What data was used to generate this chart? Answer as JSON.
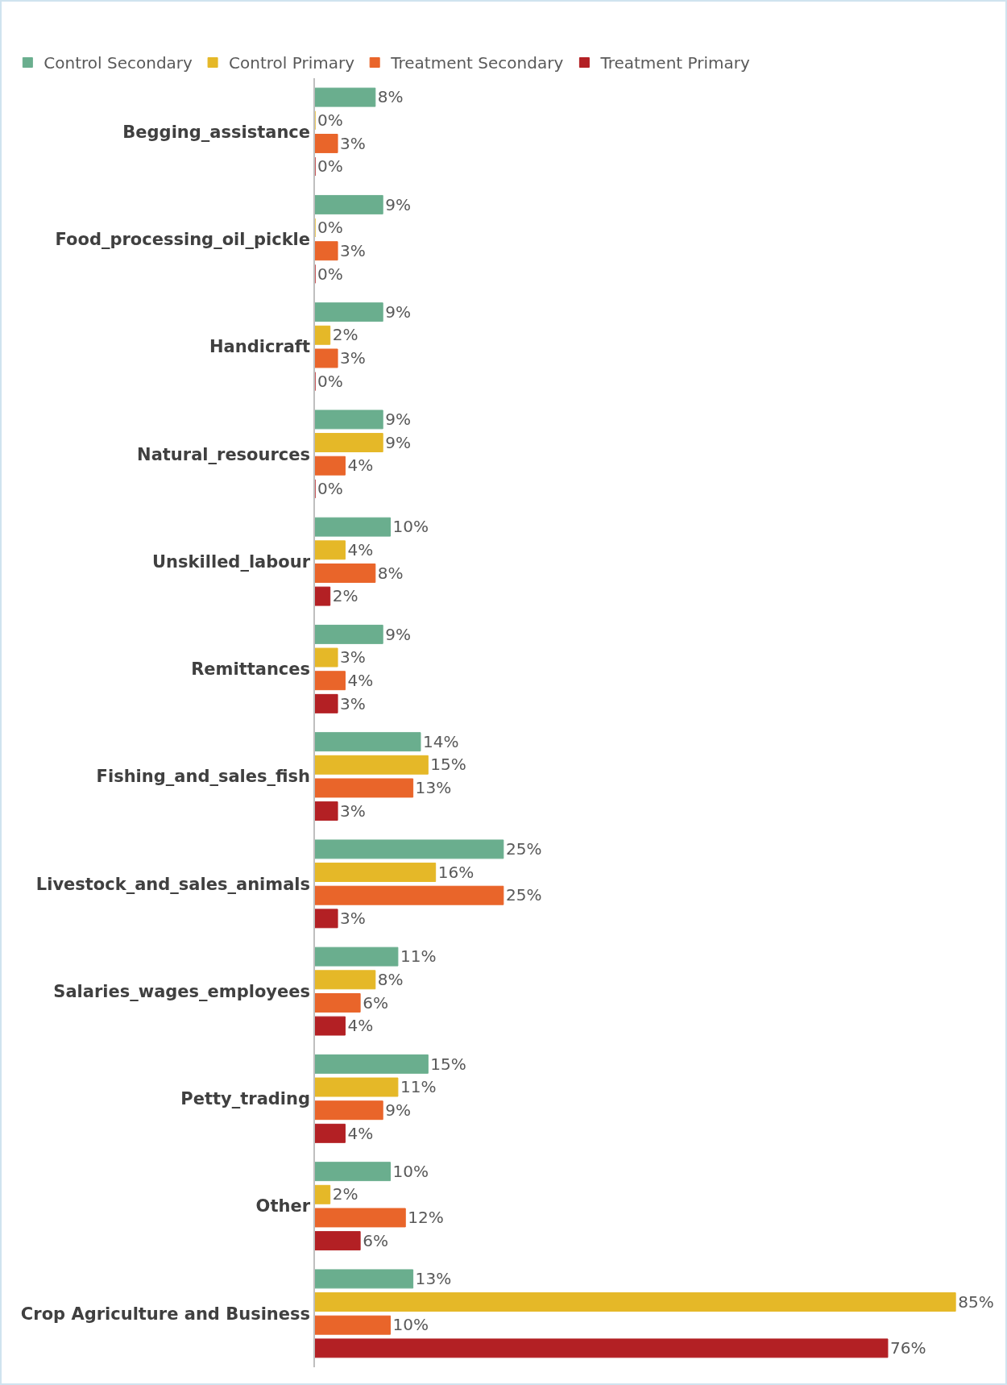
{
  "chart_data": {
    "type": "bar",
    "orientation": "horizontal",
    "legend": "top",
    "tick_labels": "y",
    "categories": [
      "Begging_assistance",
      "Food_processing_oil_pickle",
      "Handicraft",
      "Natural_resources",
      "Unskilled_labour",
      "Remittances",
      "Fishing_and_sales_fish",
      "Livestock_and_sales_animals",
      "Salaries_wages_employees",
      "Petty_trading",
      "Other",
      "Crop Agriculture and Business"
    ],
    "series": [
      {
        "name": "Control Secondary",
        "color": "#6aae8e",
        "values": [
          8,
          9,
          9,
          9,
          10,
          9,
          14,
          25,
          11,
          15,
          10,
          13
        ],
        "value_labels": [
          "8%",
          "9%",
          "9%",
          "9%",
          "10%",
          "9%",
          "14%",
          "25%",
          "11%",
          "15%",
          "10%",
          "13%"
        ]
      },
      {
        "name": "Control Primary",
        "color": "#e5b828",
        "values": [
          0,
          0,
          2,
          9,
          4,
          3,
          15,
          16,
          8,
          11,
          2,
          85
        ],
        "value_labels": [
          "0%",
          "0%",
          "2%",
          "9%",
          "4%",
          "3%",
          "15%",
          "16%",
          "8%",
          "11%",
          "2%",
          "85%"
        ]
      },
      {
        "name": "Treatment Secondary",
        "color": "#e9652a",
        "values": [
          3,
          3,
          3,
          4,
          8,
          4,
          13,
          25,
          6,
          9,
          12,
          10
        ],
        "value_labels": [
          "3%",
          "3%",
          "3%",
          "4%",
          "8%",
          "4%",
          "13%",
          "25%",
          "6%",
          "9%",
          "12%",
          "10%"
        ]
      },
      {
        "name": "Treatment Primary",
        "color": "#b32024",
        "values": [
          0,
          0,
          0,
          0,
          2,
          3,
          3,
          3,
          4,
          4,
          6,
          76
        ],
        "value_labels": [
          "0%",
          "0%",
          "0%",
          "0%",
          "2%",
          "3%",
          "3%",
          "3%",
          "4%",
          "4%",
          "6%",
          "76%"
        ]
      }
    ]
  }
}
